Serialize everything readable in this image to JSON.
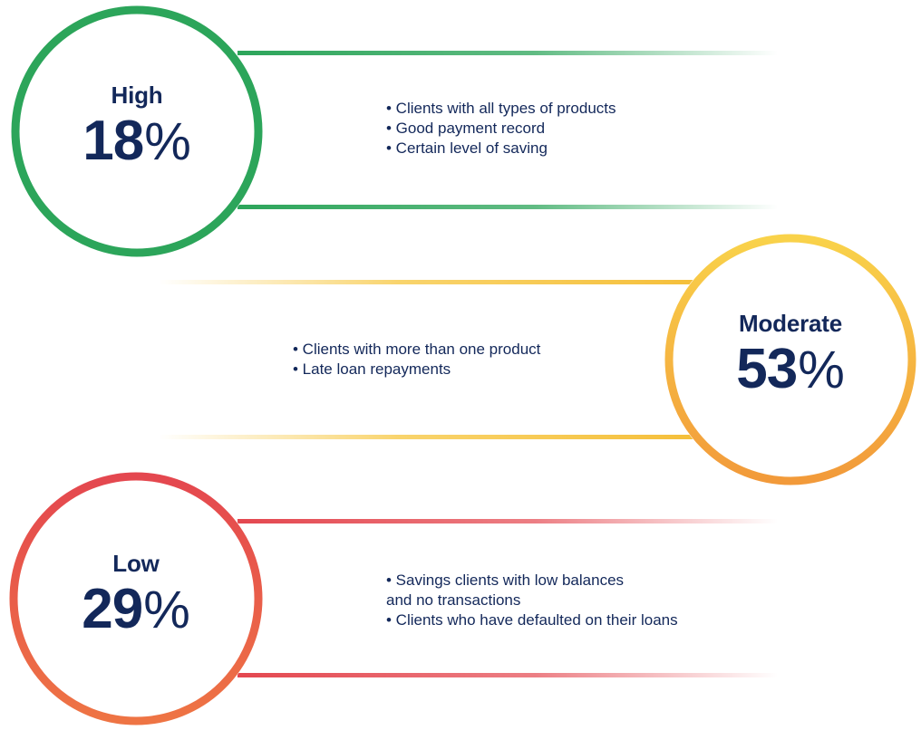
{
  "segments": [
    {
      "label": "High",
      "percent": 18,
      "percent_text": "18",
      "percent_sign": "%",
      "color": "#2ca55a",
      "bullets": [
        "• Clients with all types of products",
        "• Good payment record",
        "• Certain level of saving"
      ]
    },
    {
      "label": "Moderate",
      "percent": 53,
      "percent_text": "53",
      "percent_sign": "%",
      "color": "#f5b731",
      "color_end": "#f29a3a",
      "bullets": [
        "• Clients with more than one product",
        "• Late loan repayments"
      ]
    },
    {
      "label": "Low",
      "percent": 29,
      "percent_text": "29",
      "percent_sign": "%",
      "color": "#e4474f",
      "color_end": "#ee7444",
      "bullets": [
        "• Savings clients with low balances",
        "and no transactions",
        "• Clients who have defaulted on their loans"
      ]
    }
  ]
}
